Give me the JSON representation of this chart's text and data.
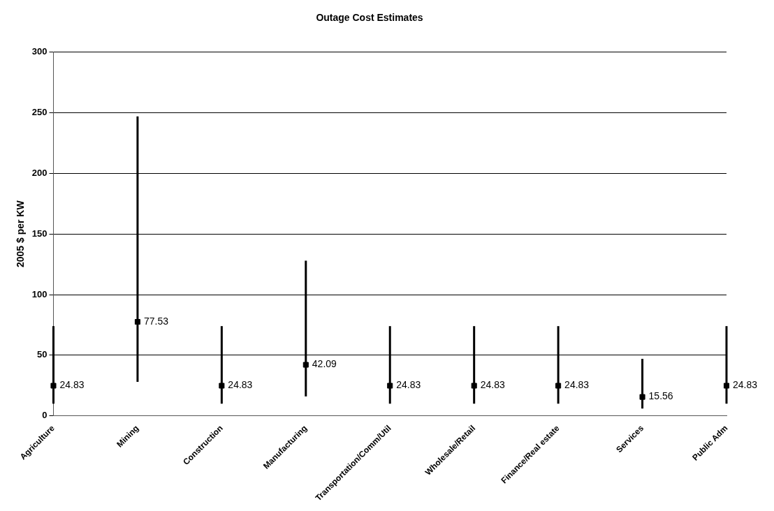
{
  "chart_data": {
    "type": "scatter",
    "title": "Outage Cost Estimates",
    "ylabel": "2005 $ per KW",
    "categories": [
      "Agriculture",
      "Mining",
      "Construction",
      "Manufacturing",
      "Transportation/Comm/Util",
      "Wholesale/Retail",
      "Finance/Real estate",
      "Services",
      "Public Adm"
    ],
    "values": [
      24.83,
      77.53,
      24.83,
      42.09,
      24.83,
      24.83,
      24.83,
      15.56,
      24.83
    ],
    "errors": [
      [
        10,
        74
      ],
      [
        28,
        247
      ],
      [
        10,
        74
      ],
      [
        16,
        128
      ],
      [
        10,
        74
      ],
      [
        10,
        74
      ],
      [
        10,
        74
      ],
      [
        6,
        47
      ],
      [
        10,
        74
      ]
    ],
    "color": "#000000",
    "marker": "square",
    "data_labels": true,
    "ylim": [
      0,
      300
    ],
    "yticks": [
      0,
      50,
      100,
      150,
      200,
      250,
      300
    ],
    "grid": "y",
    "legend": false
  }
}
